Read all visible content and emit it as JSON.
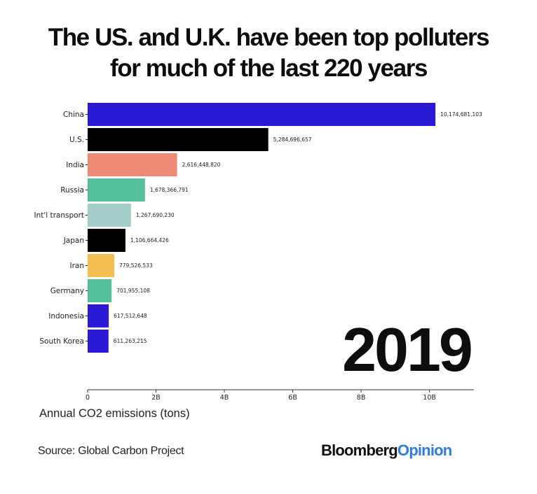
{
  "header": {
    "title_line1": "The US. and U.K. have been top polluters",
    "title_line2": "for much of the last 220 years"
  },
  "chart_data": {
    "type": "bar",
    "orientation": "horizontal",
    "year": "2019",
    "categories": [
      "China",
      "U.S.",
      "India",
      "Russia",
      "Int'l transport",
      "Japan",
      "Iran",
      "Germany",
      "Indonesia",
      "South Korea"
    ],
    "values": [
      10174681103,
      5284696657,
      2616448820,
      1678366791,
      1267690230,
      1106664426,
      779526533,
      701955108,
      617512648,
      611263215
    ],
    "value_labels": [
      "10,174,681,103",
      "5,284,696,657",
      "2,616,448,820",
      "1,678,366,791",
      "1,267,690,230",
      "1,106,664,426",
      "779,526,533",
      "701,955,108",
      "617,512,648",
      "611,263,215"
    ],
    "colors": [
      "#2a1ad6",
      "#000000",
      "#ee8a78",
      "#55c09c",
      "#a3cdc6",
      "#000000",
      "#f4bf4f",
      "#55c09c",
      "#2a1ad6",
      "#2a1ad6"
    ],
    "x_ticks": [
      0,
      2000000000,
      4000000000,
      6000000000,
      8000000000,
      10000000000
    ],
    "x_tick_labels": [
      "0",
      "2B",
      "4B",
      "6B",
      "8B",
      "10B"
    ],
    "xlim": [
      0,
      11300000000
    ],
    "xlabel": "Annual CO2 emissions (tons)",
    "grid": false
  },
  "footer": {
    "source": "Source: Global Carbon Project",
    "brand_part1": "Bloomberg",
    "brand_part2": "Opinion"
  }
}
